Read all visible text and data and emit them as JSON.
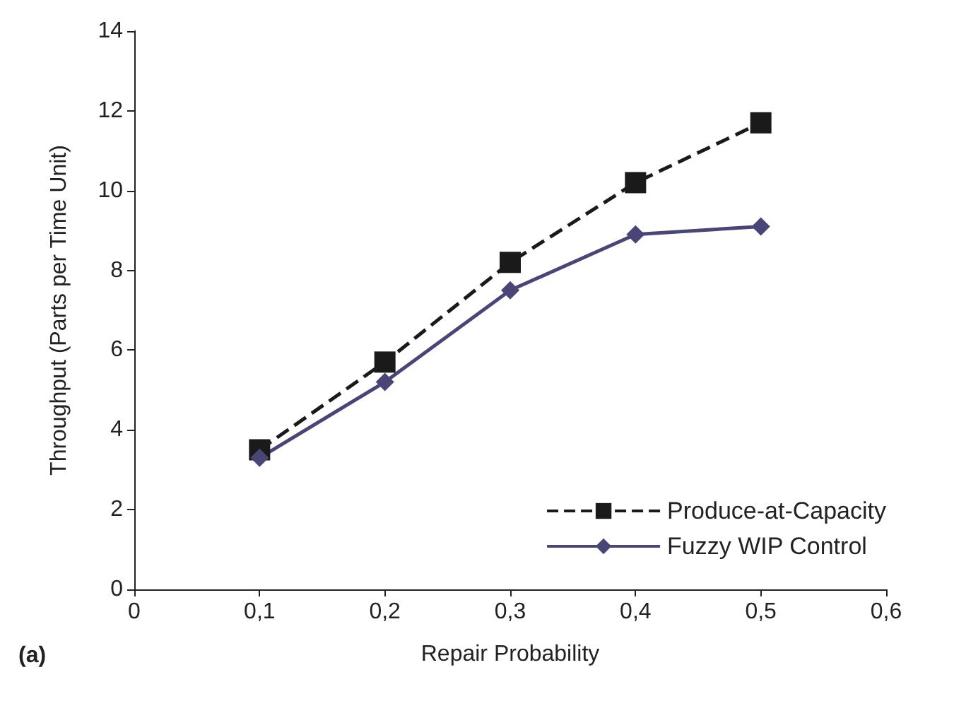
{
  "chart_data": {
    "type": "line",
    "xlabel": "Repair Probability",
    "ylabel": "Throughput (Parts per Time Unit)",
    "x": [
      0.1,
      0.2,
      0.3,
      0.4,
      0.5
    ],
    "series": [
      {
        "name": "Produce-at-Capacity",
        "color": "#1a1a1a",
        "marker": "square",
        "line_style": "dashed",
        "values": [
          3.5,
          5.7,
          8.2,
          10.2,
          11.7
        ]
      },
      {
        "name": "Fuzzy WIP Control",
        "color": "#4a4577",
        "marker": "diamond",
        "line_style": "solid",
        "values": [
          3.3,
          5.2,
          7.5,
          8.9,
          9.1
        ]
      }
    ],
    "xlim": [
      0,
      0.6
    ],
    "xticks": [
      0,
      {
        "value": 0.1,
        "label": "0,1"
      },
      {
        "value": 0.2,
        "label": "0,2"
      },
      {
        "value": 0.3,
        "label": "0,3"
      },
      {
        "value": 0.4,
        "label": "0,4"
      },
      {
        "value": 0.5,
        "label": "0,5"
      },
      {
        "value": 0.6,
        "label": "0,6"
      }
    ],
    "ylim": [
      0,
      14
    ],
    "yticks": [
      0,
      2,
      4,
      6,
      8,
      10,
      12,
      14
    ],
    "grid": false,
    "legend": "bottom right",
    "annotations": [
      "(a)"
    ]
  }
}
